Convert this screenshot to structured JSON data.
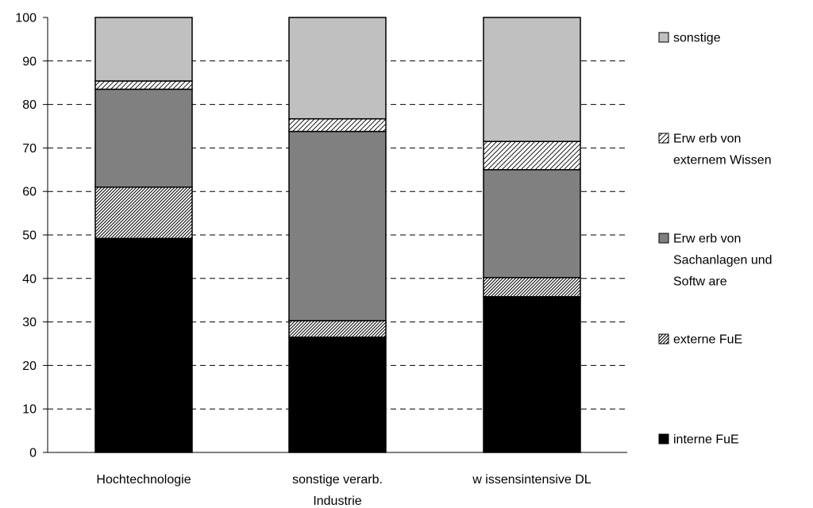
{
  "chart_data": {
    "type": "bar",
    "stacked": true,
    "title": "",
    "xlabel": "",
    "ylabel": "",
    "ylim": [
      0,
      100
    ],
    "yticks": [
      0,
      10,
      20,
      30,
      40,
      50,
      60,
      70,
      80,
      90,
      100
    ],
    "grid": "horizontal-dashed",
    "legend_position": "right",
    "categories": [
      [
        "Hochtechnologie"
      ],
      [
        "sonstige verarb.",
        "Industrie"
      ],
      [
        "w issensintensive DL"
      ]
    ],
    "series": [
      {
        "name": [
          "interne FuE"
        ],
        "fill": "black",
        "values": [
          49.2,
          26.5,
          35.8
        ]
      },
      {
        "name": [
          "externe FuE"
        ],
        "fill": "hatch-dense",
        "values": [
          11.8,
          3.8,
          4.4
        ]
      },
      {
        "name": [
          "Erw erb von",
          "Sachanlagen und",
          "Softw are"
        ],
        "fill": "dark-gray",
        "values": [
          22.5,
          43.5,
          24.8
        ]
      },
      {
        "name": [
          "Erw erb von",
          "externem Wissen"
        ],
        "fill": "hatch-light",
        "values": [
          1.9,
          2.9,
          6.5
        ]
      },
      {
        "name": [
          "sonstige"
        ],
        "fill": "light-gray",
        "values": [
          14.6,
          23.3,
          28.5
        ]
      }
    ],
    "colors": {
      "black": "#000000",
      "dark-gray": "#808080",
      "light-gray": "#c0c0c0",
      "axis": "#000000",
      "grid": "#000000"
    }
  }
}
